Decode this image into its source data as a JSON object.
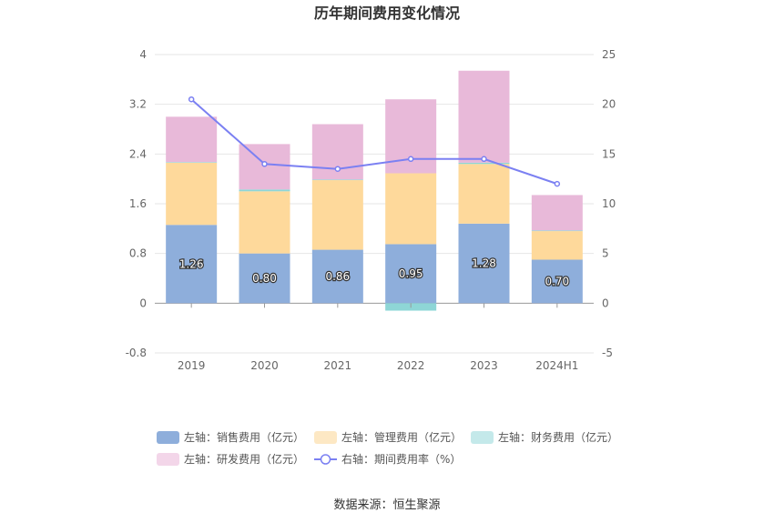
{
  "chart_data": {
    "type": "bar",
    "title": "历年期间费用变化情况",
    "categories": [
      "2019",
      "2020",
      "2021",
      "2022",
      "2023",
      "2024H1"
    ],
    "left_axis": {
      "ticks": [
        "4",
        "3.2",
        "2.4",
        "1.6",
        "0.8",
        "0",
        "-0.8"
      ],
      "ylim": [
        -0.8,
        4
      ]
    },
    "right_axis": {
      "ticks": [
        "25",
        "20",
        "15",
        "10",
        "5",
        "0",
        "-5"
      ],
      "ylim": [
        -5,
        25
      ]
    },
    "grid": true,
    "series": [
      {
        "name": "左轴：销售费用（亿元）",
        "type": "stacked-bar",
        "axis": "left",
        "color": "#8eaedb",
        "values": [
          1.26,
          0.8,
          0.86,
          0.95,
          1.28,
          0.7
        ],
        "labels": [
          "1.26",
          "0.80",
          "0.86",
          "0.95",
          "1.28",
          "0.70"
        ]
      },
      {
        "name": "左轴：管理费用（亿元）",
        "type": "stacked-bar",
        "axis": "left",
        "color": "#fed99b",
        "values": [
          1.0,
          1.0,
          1.12,
          1.14,
          0.96,
          0.46
        ]
      },
      {
        "name": "左轴：财务费用（亿元）",
        "type": "stacked-bar",
        "axis": "left",
        "color": "#8ed6d6",
        "values": [
          0.01,
          0.03,
          0.01,
          -0.12,
          0.02,
          0.01
        ]
      },
      {
        "name": "左轴：研发费用（亿元）",
        "type": "stacked-bar",
        "axis": "left",
        "color": "#e8b9d9",
        "values": [
          0.73,
          0.73,
          0.89,
          1.19,
          1.48,
          0.57
        ]
      },
      {
        "name": "右轴：期间费用率（%）",
        "type": "line",
        "axis": "right",
        "color": "#7b80f2",
        "values": [
          20.5,
          14.0,
          13.5,
          14.5,
          14.5,
          12.0
        ]
      }
    ],
    "legend_position": "bottom"
  },
  "footer": {
    "source": "数据来源：恒生聚源"
  }
}
